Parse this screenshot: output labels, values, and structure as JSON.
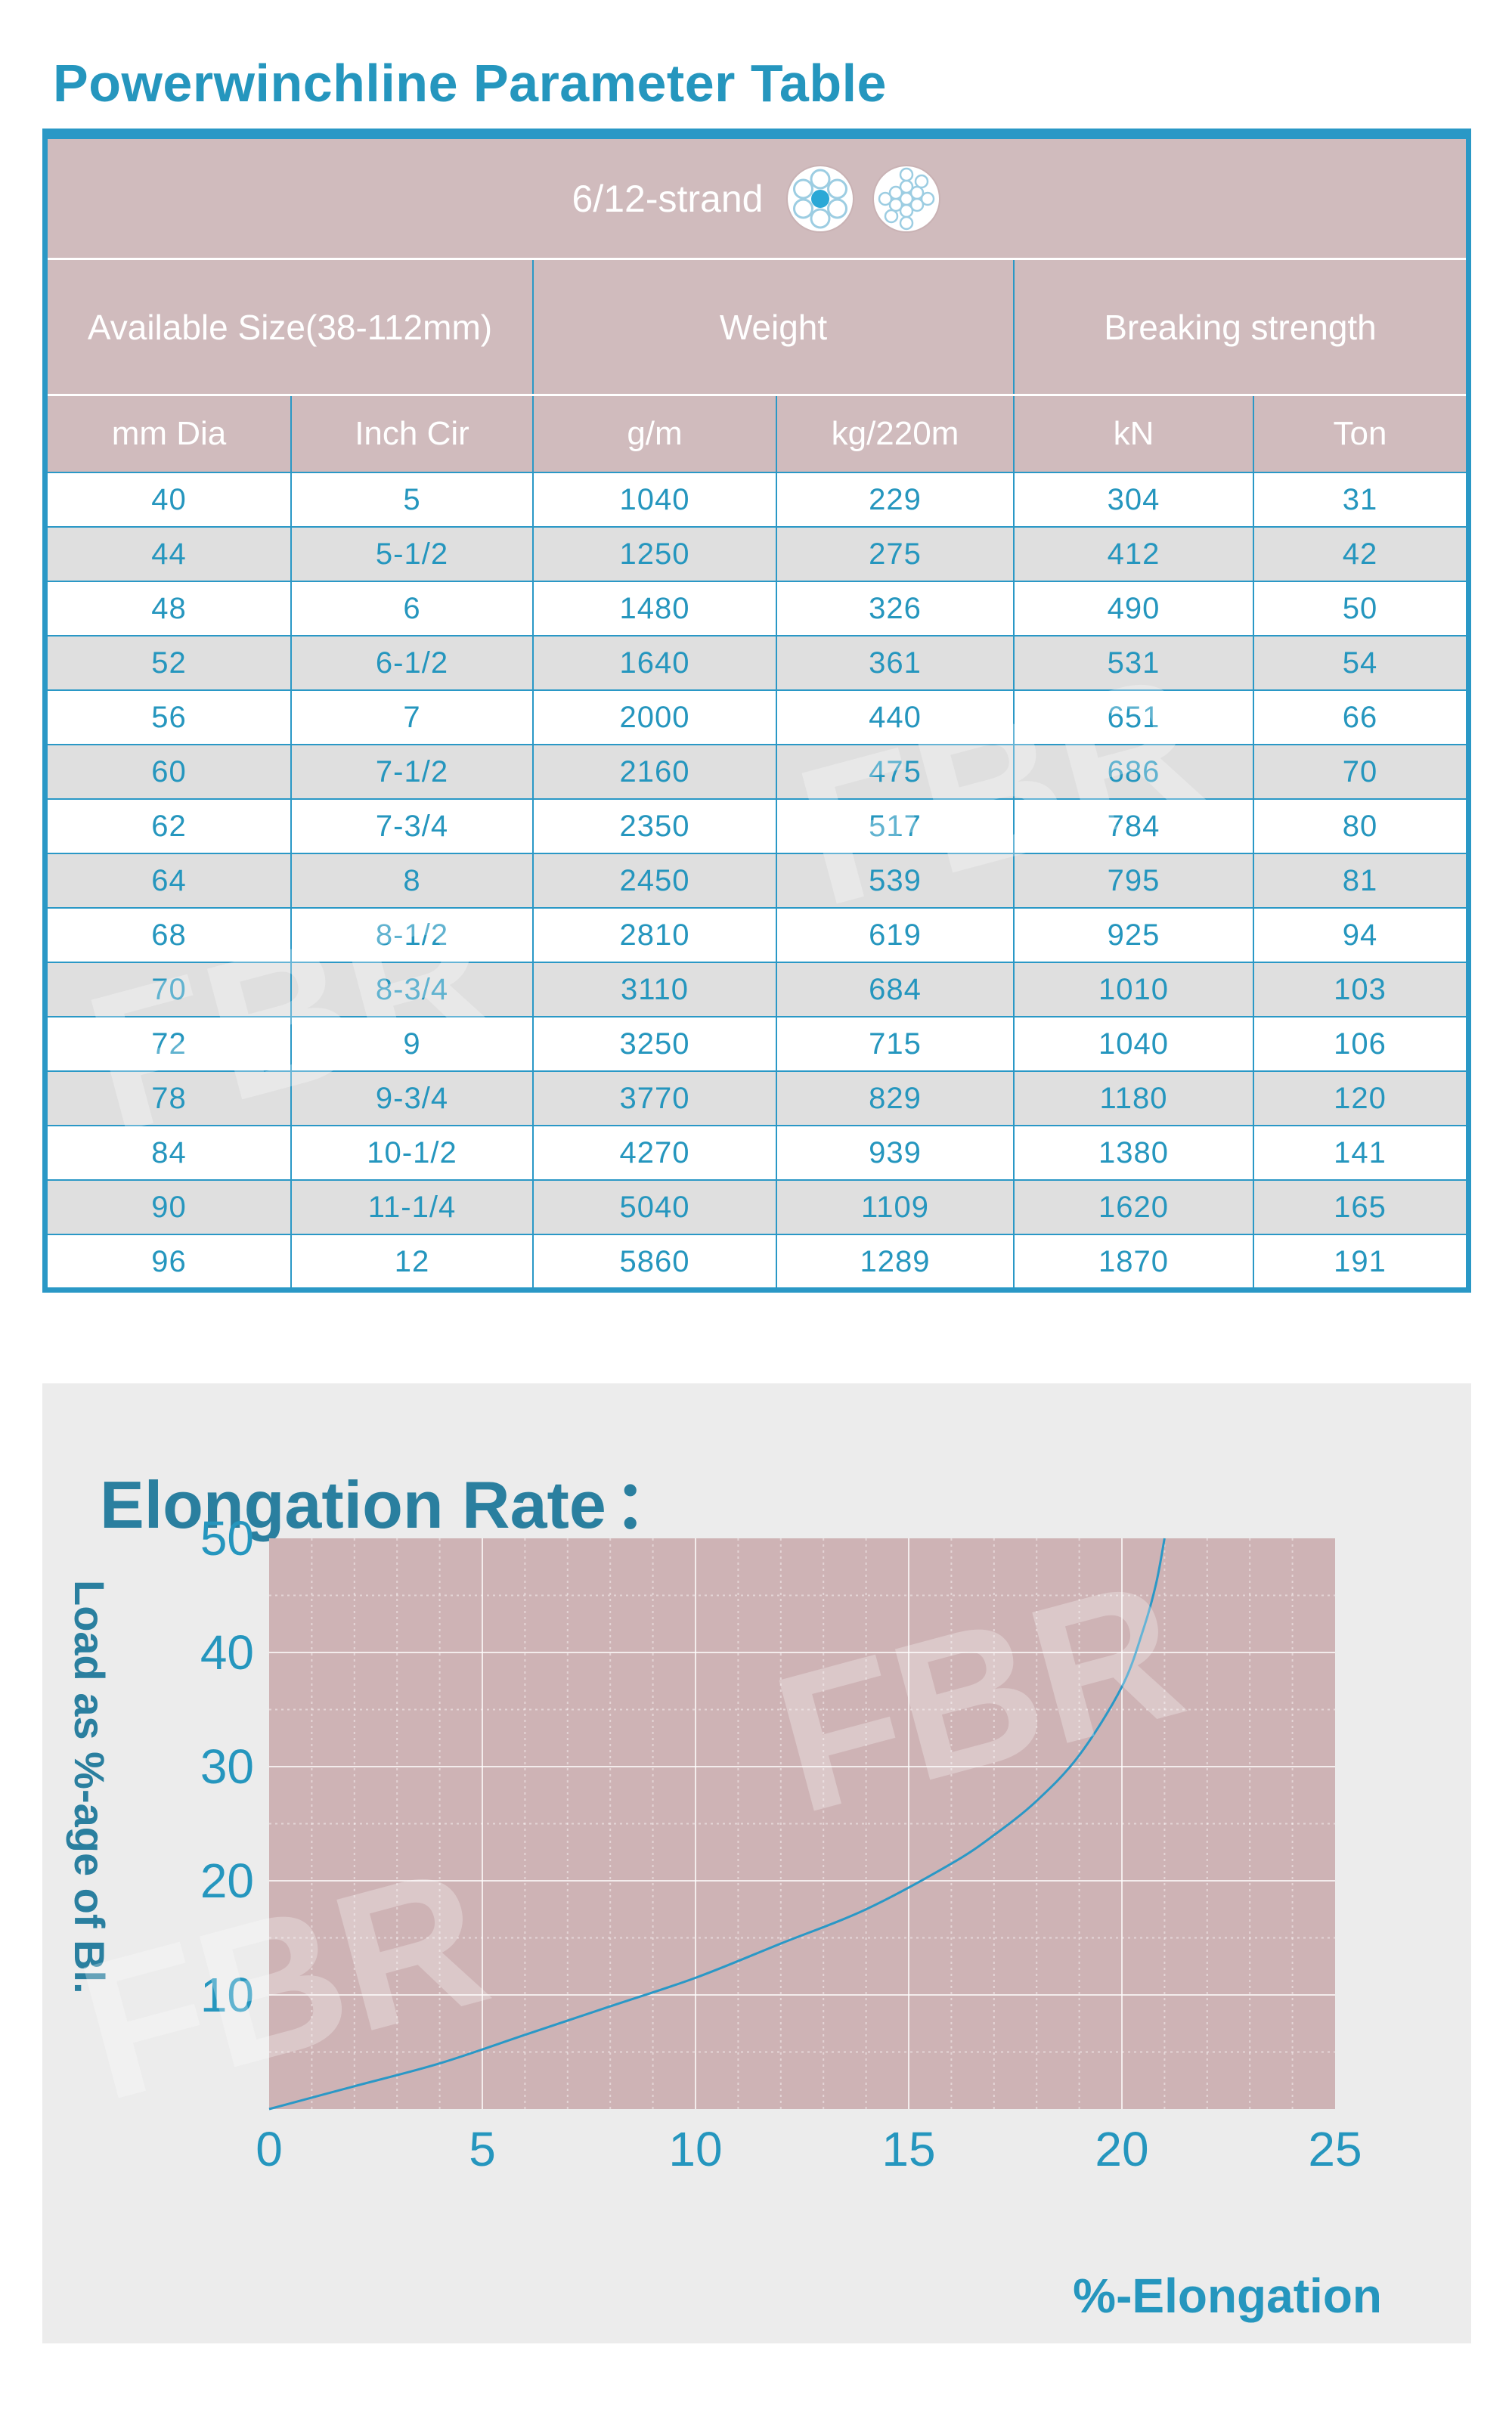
{
  "title": "Powerwinchline Parameter Table",
  "table": {
    "strand_label": "6/12-strand",
    "group_headers": [
      "Available Size(38-112mm)",
      "Weight",
      "Breaking strength"
    ],
    "columns": [
      "mm Dia",
      "Inch Cir",
      "g/m",
      "kg/220m",
      "kN",
      "Ton"
    ],
    "rows": [
      [
        "40",
        "5",
        "1040",
        "229",
        "304",
        "31"
      ],
      [
        "44",
        "5-1/2",
        "1250",
        "275",
        "412",
        "42"
      ],
      [
        "48",
        "6",
        "1480",
        "326",
        "490",
        "50"
      ],
      [
        "52",
        "6-1/2",
        "1640",
        "361",
        "531",
        "54"
      ],
      [
        "56",
        "7",
        "2000",
        "440",
        "651",
        "66"
      ],
      [
        "60",
        "7-1/2",
        "2160",
        "475",
        "686",
        "70"
      ],
      [
        "62",
        "7-3/4",
        "2350",
        "517",
        "784",
        "80"
      ],
      [
        "64",
        "8",
        "2450",
        "539",
        "795",
        "81"
      ],
      [
        "68",
        "8-1/2",
        "2810",
        "619",
        "925",
        "94"
      ],
      [
        "70",
        "8-3/4",
        "3110",
        "684",
        "1010",
        "103"
      ],
      [
        "72",
        "9",
        "3250",
        "715",
        "1040",
        "106"
      ],
      [
        "78",
        "9-3/4",
        "3770",
        "829",
        "1180",
        "120"
      ],
      [
        "84",
        "10-1/2",
        "4270",
        "939",
        "1380",
        "141"
      ],
      [
        "90",
        "11-1/4",
        "5040",
        "1109",
        "1620",
        "165"
      ],
      [
        "96",
        "12",
        "5860",
        "1289",
        "1870",
        "191"
      ]
    ]
  },
  "chart_data": {
    "type": "line",
    "title": "Elongation Rate",
    "title_suffix": "：",
    "xlabel": "%-Elongation",
    "ylabel": "Load as %-age of Bl.",
    "xlim": [
      0,
      25
    ],
    "ylim": [
      0,
      50
    ],
    "x_ticks": [
      0,
      5,
      10,
      15,
      20,
      25
    ],
    "y_ticks": [
      10,
      20,
      30,
      40,
      50
    ],
    "grid": true,
    "series": [
      {
        "name": "Elongation",
        "x": [
          0,
          2,
          4,
          6,
          8,
          10,
          12,
          14,
          16,
          17,
          18,
          19,
          20,
          20.5,
          20.8,
          21
        ],
        "y": [
          0,
          2,
          4,
          6.5,
          9,
          11.5,
          14.5,
          17.5,
          21.5,
          24,
          27,
          31,
          37,
          42,
          46,
          50
        ]
      }
    ]
  },
  "watermark": "FBR",
  "colors": {
    "accent": "#2596be",
    "table_border": "#2a98c6",
    "header_bg": "#d0bbbd",
    "row_alt": "#dfdfdf",
    "panel_bg": "#ececec",
    "plot_bg": "#ceb3b5",
    "curve": "#2a98c6"
  }
}
